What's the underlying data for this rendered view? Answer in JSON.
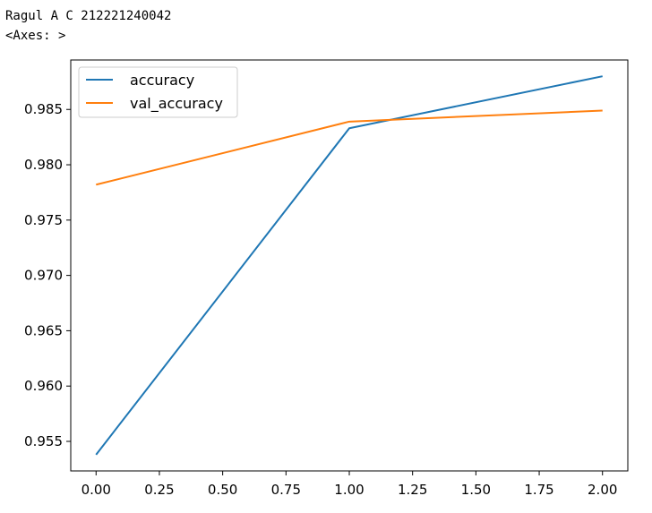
{
  "console": {
    "line1": "Ragul A C 212221240042",
    "line2": "<Axes: >"
  },
  "chart_data": {
    "type": "line",
    "x": [
      0,
      1,
      2
    ],
    "series": [
      {
        "name": "accuracy",
        "values": [
          0.9538,
          0.9833,
          0.988
        ],
        "color": "#1f77b4"
      },
      {
        "name": "val_accuracy",
        "values": [
          0.9782,
          0.9839,
          0.9849
        ],
        "color": "#ff7f0e"
      }
    ],
    "x_ticks": [
      "0.00",
      "0.25",
      "0.50",
      "0.75",
      "1.00",
      "1.25",
      "1.50",
      "1.75",
      "2.00"
    ],
    "y_ticks": [
      "0.955",
      "0.960",
      "0.965",
      "0.970",
      "0.975",
      "0.980",
      "0.985"
    ],
    "xlim": [
      -0.1,
      2.1
    ],
    "ylim": [
      0.95233,
      0.98947
    ],
    "title": "",
    "xlabel": "",
    "ylabel": "",
    "grid": false,
    "legend_position": "upper-left"
  }
}
